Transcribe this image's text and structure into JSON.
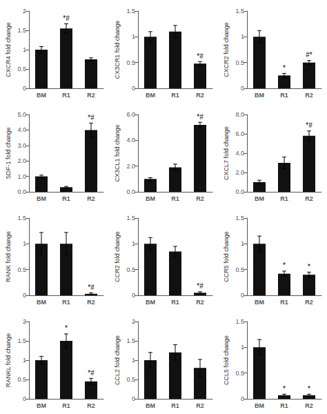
{
  "chart_data": [
    {
      "type": "bar",
      "ylabel": "CXCR4 fold change",
      "categories": [
        "BM",
        "R1",
        "R2"
      ],
      "values": [
        1.0,
        1.55,
        0.75
      ],
      "errors": [
        0.08,
        0.12,
        0.04
      ],
      "color": "#111111",
      "ylim": [
        0,
        2
      ],
      "yticks": [
        0,
        0.5,
        1,
        1.5,
        2
      ],
      "grid": false,
      "annotations": [
        {
          "category": "R1",
          "text": "*#"
        }
      ]
    },
    {
      "type": "bar",
      "ylabel": "CX3CR1 fold change",
      "categories": [
        "BM",
        "R1",
        "R2"
      ],
      "values": [
        1.0,
        1.1,
        0.48
      ],
      "errors": [
        0.1,
        0.12,
        0.04
      ],
      "color": "#111111",
      "ylim": [
        0,
        1.5
      ],
      "yticks": [
        0,
        0.5,
        1,
        1.5
      ],
      "grid": false,
      "annotations": [
        {
          "category": "R2",
          "text": "*#"
        }
      ]
    },
    {
      "type": "bar",
      "ylabel": "CXCR2 fold change",
      "categories": [
        "BM",
        "R1",
        "R2"
      ],
      "values": [
        1.0,
        0.25,
        0.5
      ],
      "errors": [
        0.12,
        0.04,
        0.04
      ],
      "color": "#111111",
      "ylim": [
        0,
        1.5
      ],
      "yticks": [
        0,
        0.5,
        1,
        1.5
      ],
      "grid": false,
      "annotations": [
        {
          "category": "R1",
          "text": "*"
        },
        {
          "category": "R2",
          "text": "#*"
        }
      ]
    },
    {
      "type": "bar",
      "ylabel": "SDF-1 fold change",
      "categories": [
        "BM",
        "R1",
        "R2"
      ],
      "values": [
        1.0,
        0.3,
        4.0
      ],
      "errors": [
        0.08,
        0.05,
        0.45
      ],
      "color": "#111111",
      "ylim": [
        0,
        5.0
      ],
      "yticks": [
        {
          "value": 0.0,
          "label": "0.0"
        },
        {
          "value": 1.0,
          "label": "1.0"
        },
        {
          "value": 2.0,
          "label": "2.0"
        },
        {
          "value": 3.0,
          "label": "3.0"
        },
        {
          "value": 4.0,
          "label": "4.0"
        },
        {
          "value": 5.0,
          "label": "5.0"
        }
      ],
      "grid": false,
      "annotations": [
        {
          "category": "R2",
          "text": "*#"
        }
      ]
    },
    {
      "type": "bar",
      "ylabel": "CX3CL1 fold change",
      "categories": [
        "BM",
        "R1",
        "R2"
      ],
      "values": [
        1.0,
        1.9,
        5.2
      ],
      "errors": [
        0.1,
        0.25,
        0.2
      ],
      "color": "#111111",
      "ylim": [
        0,
        6.0
      ],
      "yticks": [
        {
          "value": 0.0,
          "label": "0.0"
        },
        {
          "value": 2.0,
          "label": "2.0"
        },
        {
          "value": 4.0,
          "label": "4.0"
        },
        {
          "value": 6.0,
          "label": "6.0"
        }
      ],
      "grid": false,
      "annotations": [
        {
          "category": "R2",
          "text": "*#"
        }
      ]
    },
    {
      "type": "bar",
      "ylabel": "CXCL7 fold change",
      "categories": [
        "BM",
        "R1",
        "R2"
      ],
      "values": [
        1.0,
        3.0,
        5.8
      ],
      "errors": [
        0.2,
        0.6,
        0.5
      ],
      "color": "#111111",
      "ylim": [
        0,
        8.0
      ],
      "yticks": [
        {
          "value": 0.0,
          "label": "0.0"
        },
        {
          "value": 2.0,
          "label": "2.0"
        },
        {
          "value": 4.0,
          "label": "4.0"
        },
        {
          "value": 6.0,
          "label": "6.0"
        },
        {
          "value": 8.0,
          "label": "8.0"
        }
      ],
      "grid": false,
      "annotations": [
        {
          "category": "R2",
          "text": "*#"
        }
      ]
    },
    {
      "type": "bar",
      "ylabel": "RANK fold change",
      "categories": [
        "BM",
        "R1",
        "R2"
      ],
      "values": [
        1.0,
        1.0,
        0.03
      ],
      "errors": [
        0.22,
        0.22,
        0.02
      ],
      "color": "#111111",
      "ylim": [
        0,
        1.5
      ],
      "yticks": [
        0,
        0.5,
        1,
        1.5
      ],
      "grid": false,
      "annotations": [
        {
          "category": "R2",
          "text": "*#"
        }
      ]
    },
    {
      "type": "bar",
      "ylabel": "CCR2 fold change",
      "categories": [
        "BM",
        "R1",
        "R2"
      ],
      "values": [
        1.0,
        0.85,
        0.05
      ],
      "errors": [
        0.12,
        0.1,
        0.02
      ],
      "color": "#111111",
      "ylim": [
        0,
        1.5
      ],
      "yticks": [
        0,
        0.5,
        1,
        1.5
      ],
      "grid": false,
      "annotations": [
        {
          "category": "R2",
          "text": "*#"
        }
      ]
    },
    {
      "type": "bar",
      "ylabel": "CCR5 fold change",
      "categories": [
        "BM",
        "R1",
        "R2"
      ],
      "values": [
        1.0,
        0.42,
        0.4
      ],
      "errors": [
        0.15,
        0.05,
        0.05
      ],
      "color": "#111111",
      "ylim": [
        0,
        1.5
      ],
      "yticks": [
        0,
        0.5,
        1,
        1.5
      ],
      "grid": false,
      "annotations": [
        {
          "category": "R1",
          "text": "*"
        },
        {
          "category": "R2",
          "text": "*"
        }
      ]
    },
    {
      "type": "bar",
      "ylabel": "RANKL fold change",
      "categories": [
        "BM",
        "R1",
        "R2"
      ],
      "values": [
        1.0,
        1.5,
        0.45
      ],
      "errors": [
        0.1,
        0.18,
        0.08
      ],
      "color": "#111111",
      "ylim": [
        0,
        2
      ],
      "yticks": [
        0,
        0.5,
        1,
        1.5,
        2
      ],
      "grid": false,
      "annotations": [
        {
          "category": "R1",
          "text": "*"
        },
        {
          "category": "R2",
          "text": "*#"
        }
      ]
    },
    {
      "type": "bar",
      "ylabel": "CCL2 fold change",
      "categories": [
        "BM",
        "R1",
        "R2"
      ],
      "values": [
        1.0,
        1.2,
        0.8
      ],
      "errors": [
        0.2,
        0.2,
        0.22
      ],
      "color": "#111111",
      "ylim": [
        0,
        2
      ],
      "yticks": [
        0,
        0.5,
        1,
        1.5,
        2
      ],
      "grid": false,
      "annotations": []
    },
    {
      "type": "bar",
      "ylabel": "CCL5 fold change",
      "categories": [
        "BM",
        "R1",
        "R2"
      ],
      "values": [
        1.0,
        0.07,
        0.07
      ],
      "errors": [
        0.15,
        0.02,
        0.02
      ],
      "color": "#111111",
      "ylim": [
        0,
        1.5
      ],
      "yticks": [
        0,
        0.5,
        1,
        1.5
      ],
      "grid": false,
      "annotations": [
        {
          "category": "R1",
          "text": "*"
        },
        {
          "category": "R2",
          "text": "*"
        }
      ]
    }
  ]
}
